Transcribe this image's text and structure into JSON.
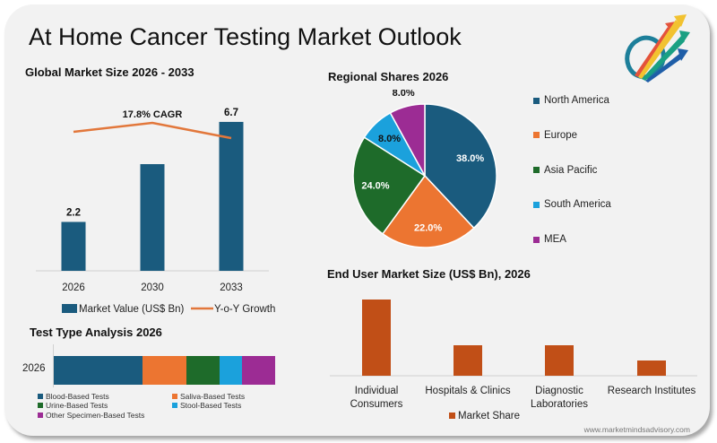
{
  "header": {
    "title": "At Home Cancer Testing Market Outlook",
    "logo_icon": "rising-arrows-logo-icon"
  },
  "colors": {
    "north_america": "#1a5b7e",
    "europe": "#ec7531",
    "asia_pacific": "#1e6b2a",
    "south_america": "#1ba1dc",
    "mea": "#9c2c94",
    "growth_line": "#e2773b",
    "end_user_bar": "#c14f17"
  },
  "watermark": "www.marketmindsadvisory.com",
  "chart_data": [
    {
      "id": "global_market_size",
      "type": "bar",
      "title": "Global Market Size 2026 - 2033",
      "categories": [
        "2026",
        "2030",
        "2033"
      ],
      "series": [
        {
          "name": "Market Value (US$ Bn)",
          "type": "bar",
          "values": [
            2.2,
            4.8,
            6.7
          ],
          "labels": [
            "2.2",
            "",
            "6.7"
          ]
        },
        {
          "name": "Y-o-Y Growth",
          "type": "line",
          "values": [
            17.0,
            18.0,
            16.3
          ]
        }
      ],
      "annotation": "17.8% CAGR",
      "ylim": [
        0,
        7
      ],
      "xlabel": "",
      "ylabel": "",
      "legend": "bottom"
    },
    {
      "id": "regional_shares",
      "type": "pie",
      "title": "Regional Shares 2026",
      "categories": [
        "North America",
        "Europe",
        "Asia Pacific",
        "South America",
        "MEA"
      ],
      "values": [
        38.0,
        22.0,
        24.0,
        8.0,
        8.0
      ],
      "labels": [
        "38.0%",
        "22.0%",
        "24.0%",
        "8.0%",
        "8.0%"
      ],
      "legend": "right"
    },
    {
      "id": "test_type_analysis",
      "type": "bar",
      "orientation": "horizontal-stacked",
      "title": "Test Type Analysis 2026",
      "categories": [
        "2026"
      ],
      "series": [
        {
          "name": "Blood-Based Tests",
          "values": [
            40
          ]
        },
        {
          "name": "Saliva-Based Tests",
          "values": [
            20
          ]
        },
        {
          "name": "Urine-Based Tests",
          "values": [
            15
          ]
        },
        {
          "name": "Stool-Based Tests",
          "values": [
            10
          ]
        },
        {
          "name": "Other Specimen-Based Tests",
          "values": [
            15
          ]
        }
      ],
      "legend": "bottom"
    },
    {
      "id": "end_user_market_size",
      "type": "bar",
      "title": "End User Market Size (US$ Bn), 2026",
      "categories": [
        [
          "Individual",
          "Consumers"
        ],
        [
          "Hospitals & Clinics"
        ],
        [
          "Diagnostic",
          "Laboratories"
        ],
        [
          "Research Institutes"
        ]
      ],
      "series": [
        {
          "name": "Market Share",
          "values": [
            50,
            20,
            20,
            10
          ]
        }
      ],
      "legend": "bottom"
    }
  ]
}
